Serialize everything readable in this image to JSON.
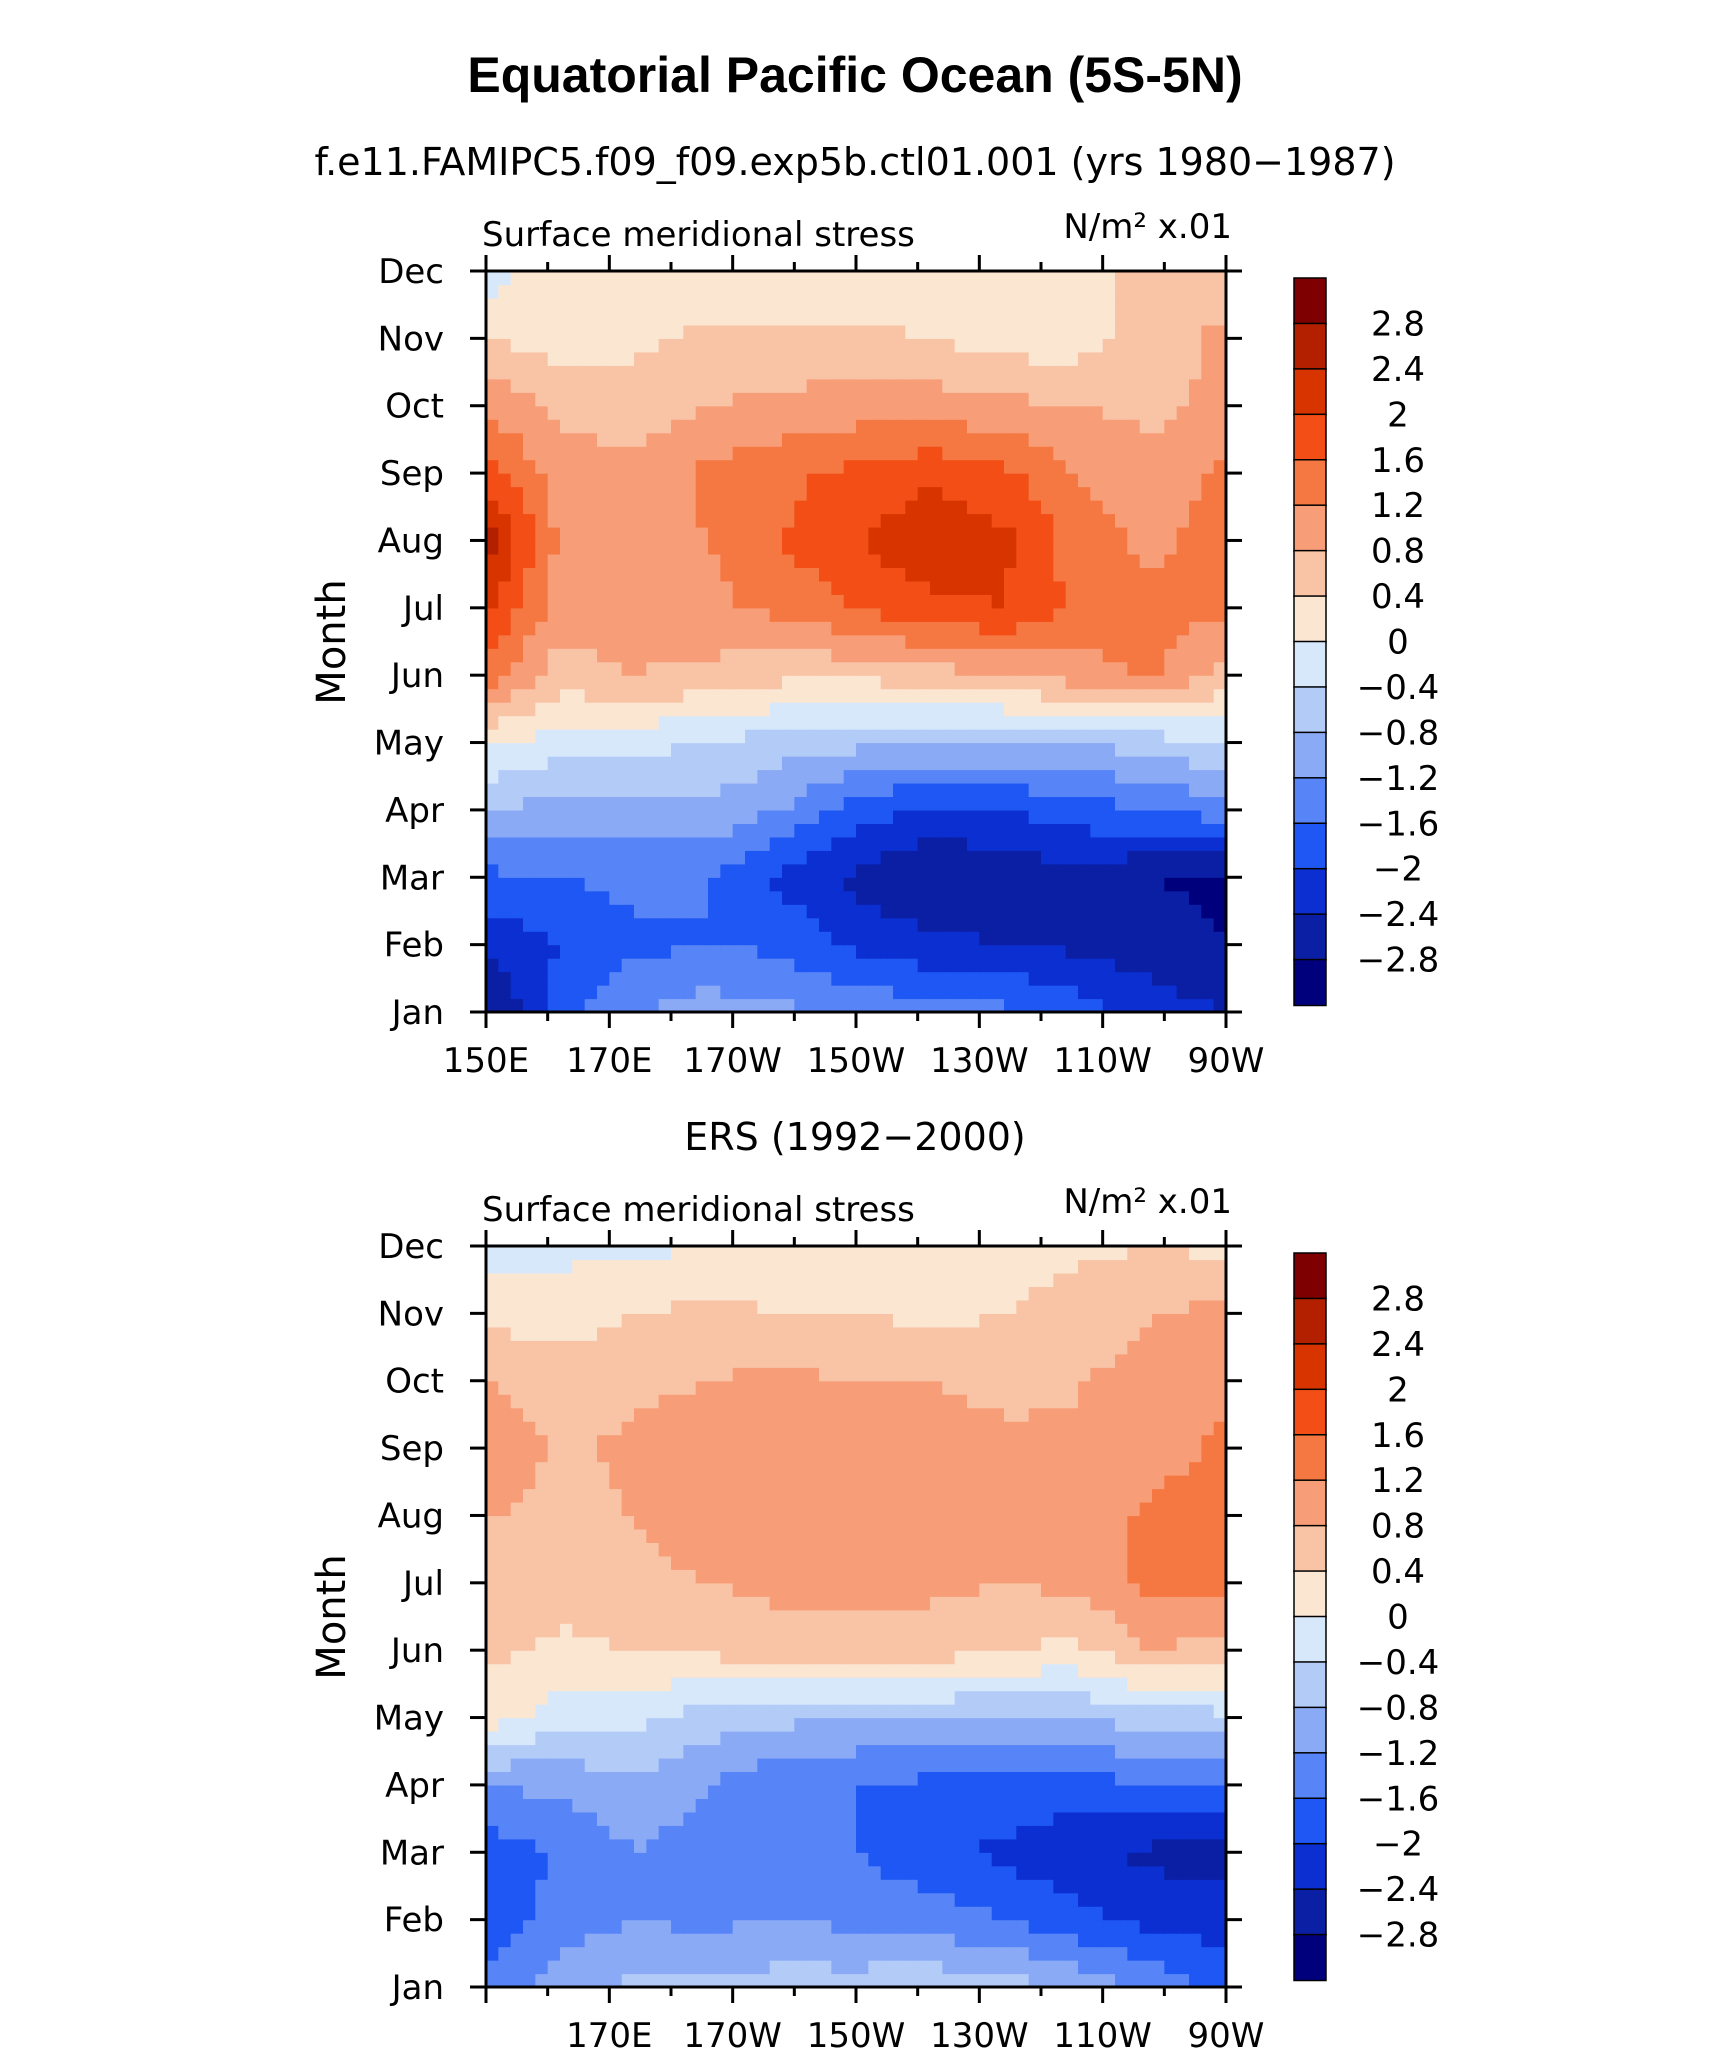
{
  "figure": {
    "title": "Equatorial Pacific Ocean (5S-5N)",
    "subtitle": "f.e11.FAMIPC5.f09_f09.exp5b.ctl01.001 (yrs 1980−1987)"
  },
  "colorbar": {
    "levels": [
      "2.8",
      "2.4",
      "2",
      "1.6",
      "1.2",
      "0.8",
      "0.4",
      "0",
      "−0.4",
      "−0.8",
      "−1.2",
      "−1.6",
      "−2",
      "−2.4",
      "−2.8"
    ],
    "colors": [
      "#7f0000",
      "#b22000",
      "#d83400",
      "#f24e16",
      "#f57843",
      "#f79e78",
      "#f9c3a6",
      "#fbe6d2",
      "#d8e8fb",
      "#b3cbf7",
      "#8aaaf6",
      "#5785f7",
      "#1f57f4",
      "#0b2fd1",
      "#0a1fa3",
      "#00007d"
    ]
  },
  "chart_data": [
    {
      "type": "heatmap",
      "panel_title": "",
      "left_string": "Surface meridional stress",
      "right_string": "N/m² x.01",
      "ylabel": "Month",
      "xlabel": "",
      "y_ticks": [
        "Jan",
        "Feb",
        "Mar",
        "Apr",
        "May",
        "Jun",
        "Jul",
        "Aug",
        "Sep",
        "Oct",
        "Nov",
        "Dec"
      ],
      "x_ticks": [
        "150E",
        "170E",
        "170W",
        "150W",
        "130W",
        "110W",
        "90W"
      ],
      "x_range": [
        150,
        270
      ],
      "y_range": [
        1,
        12
      ],
      "clevels": [
        -2.8,
        -2.4,
        -2,
        -1.6,
        -1.2,
        -0.8,
        -0.4,
        0,
        0.4,
        0.8,
        1.2,
        1.6,
        2,
        2.4,
        2.8
      ],
      "x": [
        150,
        162,
        174,
        186,
        198,
        210,
        222,
        234,
        246,
        258,
        270
      ],
      "y": [
        1,
        2,
        3,
        4,
        5,
        6,
        7,
        8,
        9,
        10,
        11,
        12
      ],
      "values": [
        [
          -2.9,
          -1.8,
          -1.2,
          -1.0,
          -1.1,
          -1.3,
          -1.4,
          -1.5,
          -1.8,
          -2.2,
          -2.4
        ],
        [
          -2.3,
          -2.0,
          -1.7,
          -1.6,
          -1.7,
          -2.1,
          -2.3,
          -2.4,
          -2.5,
          -2.6,
          -2.8
        ],
        [
          -1.7,
          -1.6,
          -1.5,
          -1.6,
          -2.1,
          -2.5,
          -2.8,
          -2.7,
          -2.5,
          -2.8,
          -2.9
        ],
        [
          -0.8,
          -1.0,
          -0.9,
          -0.9,
          -1.2,
          -1.8,
          -2.1,
          -2.0,
          -1.8,
          -1.6,
          -1.4
        ],
        [
          0.1,
          -0.2,
          -0.3,
          -0.4,
          -0.6,
          -0.7,
          -0.8,
          -0.8,
          -0.8,
          -0.6,
          -0.4
        ],
        [
          1.4,
          0.6,
          0.8,
          0.7,
          0.5,
          0.5,
          0.6,
          0.8,
          1.0,
          1.3,
          0.6
        ],
        [
          2.1,
          1.0,
          1.0,
          1.1,
          1.3,
          1.6,
          1.9,
          2.0,
          1.5,
          1.3,
          1.3
        ],
        [
          2.6,
          1.1,
          1.0,
          1.2,
          1.6,
          2.0,
          2.3,
          2.1,
          1.4,
          1.1,
          1.4
        ],
        [
          1.8,
          1.0,
          0.9,
          1.3,
          1.5,
          1.7,
          1.9,
          1.7,
          1.2,
          0.9,
          1.3
        ],
        [
          1.1,
          0.7,
          0.6,
          0.8,
          0.9,
          1.0,
          1.0,
          0.9,
          0.8,
          0.7,
          0.9
        ],
        [
          0.4,
          0.2,
          0.3,
          0.5,
          0.5,
          0.5,
          0.4,
          0.2,
          0.2,
          0.6,
          0.9
        ],
        [
          -0.2,
          0.2,
          0.2,
          0.1,
          0.1,
          0.0,
          0.1,
          0.2,
          0.3,
          0.5,
          0.6
        ]
      ]
    },
    {
      "type": "heatmap",
      "panel_title": "ERS (1992−2000)",
      "left_string": "Surface meridional stress",
      "right_string": "N/m² x.01",
      "ylabel": "Month",
      "xlabel": "",
      "y_ticks": [
        "Jan",
        "Feb",
        "Mar",
        "Apr",
        "May",
        "Jun",
        "Jul",
        "Aug",
        "Sep",
        "Oct",
        "Nov",
        "Dec"
      ],
      "x_ticks": [
        "170E",
        "170W",
        "150W",
        "130W",
        "110W",
        "90W"
      ],
      "x_range": [
        150,
        270
      ],
      "y_range": [
        1,
        12
      ],
      "clevels": [
        -2.8,
        -2.4,
        -2,
        -1.6,
        -1.2,
        -0.8,
        -0.4,
        0,
        0.4,
        0.8,
        1.2,
        1.6,
        2,
        2.4,
        2.8
      ],
      "x": [
        150,
        162,
        174,
        186,
        198,
        210,
        222,
        234,
        246,
        258,
        270
      ],
      "y": [
        1,
        2,
        3,
        4,
        5,
        6,
        7,
        8,
        9,
        10,
        11,
        12
      ],
      "values": [
        [
          -1.5,
          -1.0,
          -0.7,
          -0.7,
          -0.6,
          -0.6,
          -0.5,
          -0.6,
          -0.9,
          -1.3,
          -1.8
        ],
        [
          -1.9,
          -1.4,
          -1.2,
          -1.3,
          -1.2,
          -1.3,
          -1.4,
          -1.6,
          -1.9,
          -2.1,
          -2.2
        ],
        [
          -1.8,
          -1.6,
          -1.2,
          -1.4,
          -1.4,
          -1.6,
          -1.9,
          -2.1,
          -2.3,
          -2.5,
          -2.6
        ],
        [
          -1.2,
          -1.1,
          -0.9,
          -1.2,
          -1.5,
          -1.6,
          -1.7,
          -1.7,
          -1.8,
          -1.6,
          -1.5
        ],
        [
          0.2,
          -0.2,
          -0.3,
          -0.6,
          -0.7,
          -0.8,
          -0.8,
          -0.8,
          -0.8,
          -0.6,
          -0.5
        ],
        [
          0.5,
          0.3,
          0.4,
          0.5,
          0.6,
          0.6,
          0.6,
          0.4,
          0.3,
          0.8,
          0.6
        ],
        [
          0.7,
          0.6,
          0.7,
          0.8,
          0.9,
          0.9,
          0.9,
          0.8,
          0.9,
          1.3,
          1.3
        ],
        [
          0.8,
          0.7,
          0.8,
          1.0,
          0.9,
          1.0,
          0.9,
          0.8,
          0.9,
          1.3,
          1.4
        ],
        [
          1.2,
          0.7,
          0.9,
          1.0,
          1.0,
          1.0,
          0.9,
          0.9,
          0.8,
          1.0,
          1.3
        ],
        [
          0.8,
          0.6,
          0.7,
          0.8,
          0.9,
          0.8,
          0.8,
          0.7,
          0.8,
          0.9,
          1.1
        ],
        [
          0.3,
          0.2,
          0.4,
          0.5,
          0.4,
          0.4,
          0.3,
          0.4,
          0.6,
          0.8,
          0.9
        ],
        [
          -0.2,
          -0.1,
          -0.1,
          0.0,
          0.1,
          0.1,
          0.2,
          0.2,
          0.3,
          0.4,
          0.3
        ]
      ]
    }
  ]
}
